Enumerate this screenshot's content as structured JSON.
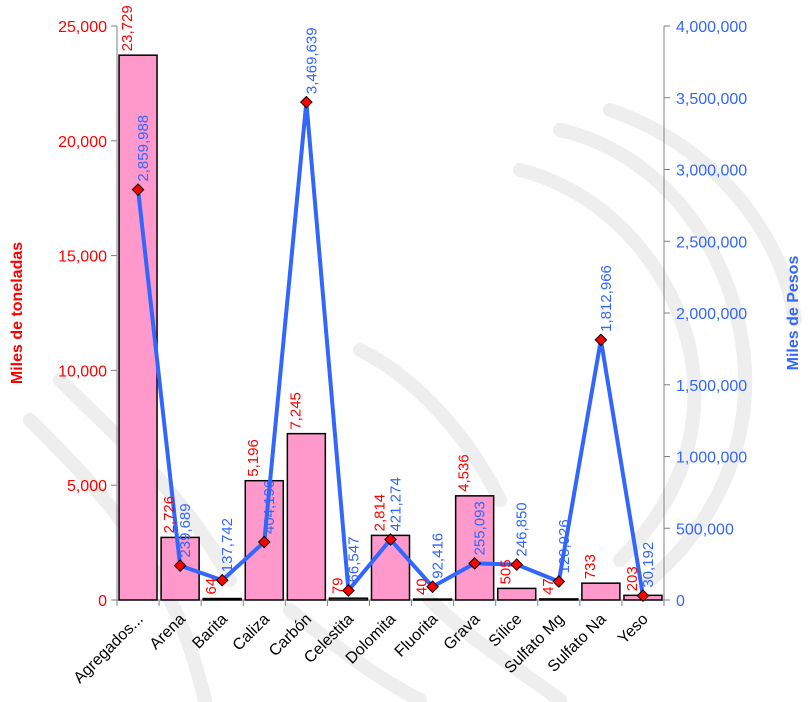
{
  "chart_data": {
    "type": "bar",
    "categories": [
      "Agregados...",
      "Arena",
      "Barita",
      "Caliza",
      "Carbón",
      "Celestita",
      "Dolomita",
      "Fluorita",
      "Grava",
      "Sílice",
      "Sulfato Mg",
      "Sulfato Na",
      "Yeso"
    ],
    "series": [
      {
        "name": "",
        "type": "bar",
        "axis": "left",
        "values": [
          23729,
          2726,
          64,
          5196,
          7245,
          79,
          2814,
          40,
          4536,
          505,
          47,
          733,
          203
        ],
        "labels": [
          "23,729",
          "2,726",
          "64",
          "5,196",
          "7,245",
          "79",
          "2,814",
          "40",
          "4,536",
          "505",
          "47",
          "733",
          "203"
        ]
      },
      {
        "name": "",
        "type": "line",
        "axis": "right",
        "values": [
          2859988,
          239689,
          137742,
          404196,
          3469639,
          66547,
          421274,
          92416,
          255093,
          246850,
          128926,
          1812966,
          30192
        ],
        "labels": [
          "2,859,988",
          "239,689",
          "137,742",
          "404,196",
          "3,469,639",
          "66,547",
          "421,274",
          "92,416",
          "255,093",
          "246,850",
          "128,926",
          "1,812,966",
          "30,192"
        ]
      }
    ],
    "ylabel": "Miles de toneladas",
    "y2label": "Miles de Pesos",
    "ylim": [
      0,
      25000
    ],
    "y2lim": [
      0,
      4000000
    ],
    "yticks": [
      "0",
      "5,000",
      "10,000",
      "15,000",
      "20,000",
      "25,000"
    ],
    "y2ticks": [
      "0",
      "500,000",
      "1,000,000",
      "1,500,000",
      "2,000,000",
      "2,500,000",
      "3,000,000",
      "3,500,000",
      "4,000,000"
    ],
    "grid": false,
    "colors": {
      "bar_fill": "#ff99cc",
      "bar_stroke": "#000000",
      "line": "#3366ff",
      "marker": "#ff0000",
      "left_text": "#ff0000",
      "right_text": "#3366ff"
    }
  }
}
